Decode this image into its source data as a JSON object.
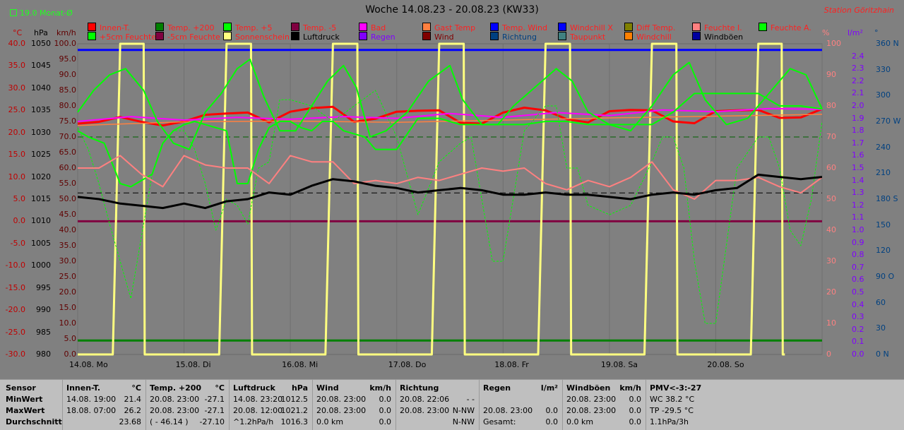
{
  "header": {
    "title": "Woche 14.08.23 - 20.08.23 (KW33)",
    "station": "Station Göritzhain",
    "month_avg": "19.0 Monat-Ø"
  },
  "axis_heads": {
    "temp_unit": "°C",
    "pressure_unit": "hPa",
    "wind_unit": "km/h",
    "humidity_unit": "%",
    "rain_unit": "l/m²",
    "direction_unit": "°"
  },
  "legend": [
    {
      "label": "Innen-T.",
      "color": "#ff0000"
    },
    {
      "label": "Temp. +200",
      "color": "#008000"
    },
    {
      "label": "Temp. +5",
      "color": "#00ff00"
    },
    {
      "label": "Temp. -5",
      "color": "#800040"
    },
    {
      "label": "Bad",
      "color": "#ff00ff"
    },
    {
      "label": "Gast Temp",
      "color": "#ff8040"
    },
    {
      "label": "Temp. Wind",
      "color": "#0000ff"
    },
    {
      "label": "Windchill X",
      "color": "#0000ff"
    },
    {
      "label": "Diff Temp.",
      "color": "#808000"
    },
    {
      "label": "Feuchte I.",
      "color": "#ff8080"
    },
    {
      "label": "Feuchte A.",
      "color": "#00ff00"
    },
    {
      "label": "+5cm Feuchte",
      "color": "#00ff00"
    },
    {
      "label": "-5cm Feuchte",
      "color": "#800040"
    },
    {
      "label": "Sonnenschein",
      "color": "#ffff80"
    },
    {
      "label": "Luftdruck",
      "color": "#000000"
    },
    {
      "label": "Regen",
      "color": "#8000ff"
    },
    {
      "label": "Wind",
      "color": "#800000"
    },
    {
      "label": "Richtung",
      "color": "#004080"
    },
    {
      "label": "Taupunkt",
      "color": "#408080"
    },
    {
      "label": "Windchill",
      "color": "#ff8000"
    },
    {
      "label": "Windböen",
      "color": "#0000a0"
    }
  ],
  "legend_text_colors": [
    "#ff2020",
    "#ff2020",
    "#ff2020",
    "#ff2020",
    "#ff2020",
    "#ff2020",
    "#ff2020",
    "#ff2020",
    "#ff2020",
    "#ff2020",
    "#ff2020",
    "#ff2020",
    "#ff2020",
    "#ff2020",
    "#000000",
    "#8000ff",
    "#800000",
    "#004080",
    "#ff2020",
    "#ff2020",
    "#000000"
  ],
  "chart_data": {
    "type": "line",
    "title": "Woche 14.08.23 - 20.08.23 (KW33)",
    "x_labels": [
      "14.08. Mo",
      "15.08. Di",
      "16.08. Mi",
      "17.08. Do",
      "18.08. Fr",
      "19.08. Sa",
      "20.08. So"
    ],
    "x_range_days": [
      0,
      7
    ],
    "axes": {
      "temp": {
        "unit": "°C",
        "range": [
          -30,
          40
        ],
        "ticks": [
          "40.0",
          "35.0",
          "30.0",
          "25.0",
          "20.0",
          "15.0",
          "10.0",
          "5.0",
          "0.0",
          "-5.0",
          "-10.0",
          "-15.0",
          "-20.0",
          "-25.0",
          "-30.0"
        ]
      },
      "pressure": {
        "unit": "hPa",
        "range": [
          980,
          1050
        ],
        "ticks": [
          "1050",
          "1045",
          "1040",
          "1035",
          "1030",
          "1025",
          "1020",
          "1015",
          "1010",
          "1005",
          "1000",
          "995",
          "990",
          "985",
          "980"
        ]
      },
      "wind": {
        "unit": "km/h",
        "range": [
          0,
          100
        ],
        "ticks": [
          "100.0",
          "95.0",
          "90.0",
          "85.0",
          "80.0",
          "75.0",
          "70.0",
          "65.0",
          "60.0",
          "55.0",
          "50.0",
          "45.0",
          "40.0",
          "35.0",
          "30.0",
          "25.0",
          "20.0",
          "15.0",
          "10.0",
          "5.0",
          "0.0"
        ]
      },
      "humidity": {
        "unit": "%",
        "range": [
          0,
          100
        ],
        "ticks": [
          "100",
          "90",
          "80",
          "70",
          "60",
          "50",
          "40",
          "30",
          "20",
          "10",
          "0"
        ]
      },
      "rain": {
        "unit": "l/m²",
        "range": [
          0,
          2.5
        ],
        "ticks": [
          "2.4",
          "2.3",
          "2.2",
          "2.1",
          "2.0",
          "1.9",
          "1.8",
          "1.7",
          "1.6",
          "1.5",
          "1.4",
          "1.3",
          "1.2",
          "1.1",
          "1.0",
          "0.9",
          "0.8",
          "0.7",
          "0.6",
          "0.5",
          "0.4",
          "0.3",
          "0.2",
          "0.1",
          "0.0"
        ]
      },
      "direction": {
        "unit": "°",
        "range": [
          0,
          360
        ],
        "ticks": [
          "360 N",
          "330",
          "300",
          "270 W",
          "240",
          "210",
          "180 S",
          "150",
          "120",
          "90 O",
          "60",
          "30",
          "0 N"
        ]
      }
    },
    "reference_lines": [
      {
        "name": "Windböen",
        "axis": "wind",
        "value": 98,
        "color": "#0000ff"
      },
      {
        "name": "Temp. +200",
        "axis": "wind",
        "value": 4.5,
        "color": "#008000"
      },
      {
        "name": "Temp. -5",
        "axis": "temp",
        "value": 0,
        "color": "#800040"
      },
      {
        "name": "Temp. +200 Ø",
        "axis": "wind",
        "value": 70,
        "color": "#006000",
        "dashed": true
      },
      {
        "name": "Luftdruck Ø",
        "axis": "wind",
        "value": 52,
        "color": "#000000",
        "dashed": true
      }
    ],
    "series": [
      {
        "name": "Sonnenschein",
        "axis": "wind",
        "color": "#ffff80",
        "width": 3,
        "x": [
          0,
          0.33,
          0.4,
          0.62,
          0.63,
          0.65,
          1.33,
          1.4,
          1.63,
          1.64,
          1.66,
          2.33,
          2.4,
          2.63,
          2.64,
          2.66,
          3.33,
          3.4,
          3.63,
          3.64,
          3.66,
          4.33,
          4.4,
          4.63,
          4.64,
          4.66,
          5.33,
          5.4,
          5.63,
          5.64,
          5.66,
          6.33,
          6.4,
          6.62,
          6.63,
          6.65
        ],
        "y": [
          0,
          0,
          100,
          100,
          0,
          0,
          0,
          100,
          100,
          0,
          0,
          0,
          100,
          100,
          0,
          0,
          0,
          100,
          100,
          0,
          0,
          0,
          100,
          100,
          0,
          0,
          0,
          100,
          100,
          0,
          0,
          0,
          100,
          100,
          0,
          0
        ]
      },
      {
        "name": "Innen-T.",
        "axis": "temp",
        "color": "#ff0000",
        "width": 3,
        "x": [
          0,
          0.2,
          0.4,
          0.6,
          0.8,
          1.0,
          1.2,
          1.4,
          1.6,
          1.8,
          2.0,
          2.2,
          2.4,
          2.6,
          2.8,
          3.0,
          3.2,
          3.4,
          3.6,
          3.8,
          4.0,
          4.2,
          4.4,
          4.6,
          4.8,
          5.0,
          5.2,
          5.4,
          5.6,
          5.8,
          6.0,
          6.2,
          6.4,
          6.6,
          6.8,
          7.0
        ],
        "y": [
          22.0,
          22.4,
          23.5,
          22.4,
          21.6,
          22.5,
          24.0,
          24.3,
          24.5,
          22.3,
          24.7,
          25.5,
          25.8,
          22.4,
          23.1,
          24.7,
          24.9,
          25.0,
          22.2,
          22.0,
          24.5,
          25.6,
          25.0,
          23.0,
          22.3,
          24.8,
          25.1,
          25.0,
          22.5,
          22.1,
          24.8,
          25.0,
          25.1,
          23.3,
          23.4,
          25.3
        ]
      },
      {
        "name": "Bad",
        "axis": "temp",
        "color": "#ff00ff",
        "width": 2,
        "x": [
          0,
          0.5,
          1.0,
          1.5,
          2.0,
          2.5,
          3.0,
          3.5,
          4.0,
          4.5,
          5.0,
          5.5,
          6.0,
          6.5,
          7.0
        ],
        "y": [
          22.5,
          23.6,
          22.8,
          23.4,
          23.0,
          23.6,
          23.2,
          24.3,
          23.4,
          24.5,
          23.8,
          25.1,
          24.7,
          25.4,
          25.2
        ]
      },
      {
        "name": "Gast Temp",
        "axis": "temp",
        "color": "#ff8040",
        "width": 1.5,
        "x": [
          0,
          1,
          2,
          3,
          4,
          5,
          6,
          7
        ],
        "y": [
          21.6,
          22.4,
          22.6,
          22.3,
          22.8,
          23.3,
          23.7,
          24.1
        ]
      },
      {
        "name": "Feuchte A.",
        "axis": "wind",
        "color": "#00ff00",
        "width": 2,
        "x": [
          0,
          0.15,
          0.3,
          0.45,
          0.62,
          0.75,
          0.9,
          1.05,
          1.2,
          1.35,
          1.5,
          1.62,
          1.75,
          1.9,
          2.05,
          2.2,
          2.35,
          2.5,
          2.62,
          2.75,
          2.9,
          3.1,
          3.3,
          3.5,
          3.62,
          3.8,
          3.95,
          4.1,
          4.3,
          4.5,
          4.65,
          4.8,
          5.0,
          5.2,
          5.4,
          5.6,
          5.75,
          5.9,
          6.1,
          6.3,
          6.5,
          6.7,
          6.85,
          7.0
        ],
        "y": [
          78,
          85,
          90,
          92,
          85,
          75,
          68,
          66,
          78,
          84,
          92,
          95,
          83,
          72,
          72,
          80,
          88,
          93,
          86,
          70,
          72,
          78,
          88,
          93,
          82,
          74,
          74,
          80,
          86,
          92,
          88,
          78,
          74,
          72,
          80,
          90,
          94,
          82,
          74,
          76,
          84,
          92,
          90,
          79
        ]
      },
      {
        "name": "Temp. +5",
        "axis": "wind",
        "color": "#00ff00",
        "width": 2,
        "x": [
          0,
          0.1,
          0.25,
          0.4,
          0.5,
          0.6,
          0.7,
          0.8,
          0.9,
          1.0,
          1.1,
          1.2,
          1.3,
          1.4,
          1.5,
          1.6,
          1.7,
          1.8,
          1.9,
          2.0,
          2.1,
          2.2,
          2.3,
          2.4,
          2.5,
          2.6,
          2.7,
          2.8,
          3.0,
          3.2,
          3.4,
          3.6,
          3.8,
          4.0,
          4.2,
          4.4,
          4.6,
          4.8,
          5.0,
          5.2,
          5.4,
          5.6,
          5.8,
          6.0,
          6.2,
          6.4,
          6.6,
          6.8,
          7.0
        ],
        "y": [
          72,
          70,
          68,
          55,
          54,
          56,
          58,
          68,
          72,
          74,
          75,
          74,
          73,
          72,
          55,
          55,
          66,
          73,
          75,
          75,
          73,
          72,
          75,
          75,
          72,
          71,
          70,
          66,
          66,
          76,
          76,
          74,
          74,
          74,
          74,
          75,
          75,
          74,
          74,
          74,
          74,
          78,
          84,
          84,
          84,
          84,
          80,
          80,
          79
        ]
      },
      {
        "name": "+5cm Feuchte",
        "axis": "wind",
        "color": "#00ff00",
        "width": 1,
        "dashed": true,
        "x": [
          0,
          0.1,
          0.2,
          0.3,
          0.4,
          0.5,
          0.6,
          0.7,
          0.8,
          0.9,
          1.0,
          1.1,
          1.2,
          1.3,
          1.4,
          1.5,
          1.6,
          1.7,
          1.8,
          1.9,
          2.0,
          2.2,
          2.4,
          2.6,
          2.8,
          3.0,
          3.2,
          3.4,
          3.5,
          3.6,
          3.7,
          3.8,
          3.9,
          4.0,
          4.2,
          4.4,
          4.5,
          4.6,
          4.7,
          4.8,
          5.0,
          5.2,
          5.4,
          5.5,
          5.6,
          5.7,
          5.8,
          5.9,
          6.0,
          6.2,
          6.4,
          6.5,
          6.6,
          6.7,
          6.8,
          6.9,
          7.0
        ],
        "y": [
          73,
          66,
          55,
          42,
          30,
          18,
          38,
          58,
          68,
          72,
          72,
          66,
          55,
          40,
          50,
          48,
          42,
          60,
          62,
          82,
          82,
          80,
          75,
          80,
          85,
          70,
          45,
          62,
          65,
          68,
          70,
          50,
          30,
          30,
          72,
          80,
          80,
          60,
          60,
          48,
          45,
          48,
          62,
          70,
          70,
          60,
          30,
          10,
          10,
          60,
          70,
          70,
          60,
          40,
          35,
          50,
          75
        ]
      },
      {
        "name": "Feuchte I.",
        "axis": "wind",
        "color": "#ff8080",
        "width": 2,
        "x": [
          0,
          0.2,
          0.4,
          0.6,
          0.8,
          1.0,
          1.2,
          1.4,
          1.6,
          1.8,
          2.0,
          2.2,
          2.4,
          2.6,
          2.8,
          3.0,
          3.2,
          3.4,
          3.6,
          3.8,
          4.0,
          4.2,
          4.4,
          4.6,
          4.8,
          5.0,
          5.2,
          5.4,
          5.6,
          5.8,
          6.0,
          6.2,
          6.4,
          6.6,
          6.8,
          7.0
        ],
        "y": [
          60,
          60,
          64,
          58,
          54,
          64,
          61,
          60,
          60,
          55,
          64,
          62,
          62,
          55,
          56,
          55,
          57,
          56,
          58,
          60,
          59,
          60,
          55,
          53,
          56,
          54,
          57,
          62,
          53,
          50,
          56,
          56,
          57,
          54,
          52,
          57
        ]
      },
      {
        "name": "Luftdruck",
        "axis": "pressure",
        "color": "#000000",
        "width": 3,
        "x": [
          0,
          0.2,
          0.4,
          0.6,
          0.8,
          1.0,
          1.2,
          1.4,
          1.6,
          1.8,
          2.0,
          2.2,
          2.4,
          2.6,
          2.8,
          3.0,
          3.2,
          3.4,
          3.6,
          3.8,
          4.0,
          4.2,
          4.4,
          4.6,
          4.8,
          5.0,
          5.2,
          5.4,
          5.6,
          5.8,
          6.0,
          6.2,
          6.4,
          6.6,
          6.8,
          7.0
        ],
        "y": [
          1015.5,
          1015.0,
          1014.0,
          1013.5,
          1013.0,
          1014.0,
          1013.0,
          1014.5,
          1015.0,
          1016.5,
          1016.0,
          1018.0,
          1019.5,
          1019.0,
          1018.0,
          1017.5,
          1016.5,
          1017.0,
          1017.5,
          1017.0,
          1016.0,
          1016.0,
          1016.5,
          1016.0,
          1016.0,
          1015.5,
          1015.0,
          1016.0,
          1016.5,
          1016.0,
          1017.0,
          1017.5,
          1020.5,
          1020.0,
          1019.5,
          1020.0
        ]
      }
    ]
  },
  "stats": {
    "labels": {
      "sensor": "Sensor",
      "min": "MinWert",
      "max": "MaxWert",
      "avg": "Durchschnitt"
    },
    "columns": [
      {
        "name": "Innen-T.",
        "unit": "°C",
        "min_time": "14.08.  19:00",
        "min_val": "21.4",
        "max_time": "18.08.  07:00",
        "max_val": "26.2",
        "avg_time": "",
        "avg_val": "23.68"
      },
      {
        "name": "Temp. +200",
        "unit": "°C",
        "min_time": "20.08.  23:00",
        "min_val": "-27.1",
        "max_time": "20.08.  23:00",
        "max_val": "-27.1",
        "avg_time": "( - 46.14 )",
        "avg_val": "-27.10"
      },
      {
        "name": "Luftdruck",
        "unit": "hPa",
        "min_time": "14.08.  23:20",
        "min_val": "1012.5",
        "max_time": "20.08.  12:00",
        "max_val": "1021.2",
        "avg_time": "^1.2hPa/h",
        "avg_val": "1016.3"
      },
      {
        "name": "Wind",
        "unit": "km/h",
        "min_time": "20.08.  23:00",
        "min_val": "0.0",
        "max_time": "20.08.  23:00",
        "max_val": "0.0",
        "avg_time": "0.0 km",
        "avg_val": "0.0"
      },
      {
        "name": "Richtung",
        "unit": "",
        "min_time": "20.08.  22:06",
        "min_val": "- -",
        "max_time": "20.08.  23:00",
        "max_val": "N-NW",
        "avg_time": "",
        "avg_val": "N-NW"
      },
      {
        "name": "Regen",
        "unit": "l/m²",
        "min_time": "",
        "min_val": "",
        "max_time": "20.08.  23:00",
        "max_val": "0.0",
        "avg_time": "Gesamt:",
        "avg_val": "0.0"
      },
      {
        "name": "Windböen",
        "unit": "km/h",
        "min_time": "20.08.  23:00",
        "min_val": "0.0",
        "max_time": "20.08.  23:00",
        "max_val": "0.0",
        "avg_time": "0.0 km",
        "avg_val": "0.0"
      }
    ],
    "pmv": {
      "title": "PMV<-3:-27",
      "line1": "WC 38.2 °C",
      "line2": "TP -29.5 °C",
      "line3": "1.1hPa/3h"
    }
  }
}
